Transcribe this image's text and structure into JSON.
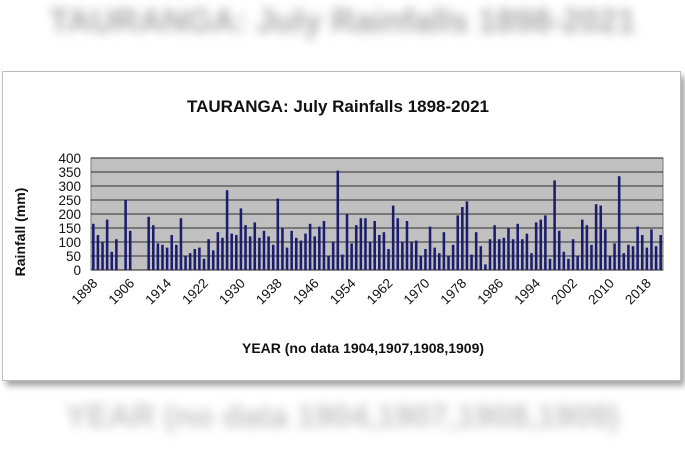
{
  "chart_data": {
    "type": "bar",
    "title": "TAURANGA: July Rainfalls  1898-2021",
    "xlabel": "YEAR (no data 1904,1907,1908,1909)",
    "ylabel": "Rainfall (mm)",
    "ylim": [
      0,
      400
    ],
    "yticks": [
      0,
      50,
      100,
      150,
      200,
      250,
      300,
      350,
      400
    ],
    "xtick_labels": [
      "1898",
      "1906",
      "1914",
      "1922",
      "1930",
      "1938",
      "1946",
      "1954",
      "1962",
      "1970",
      "1978",
      "1986",
      "1994",
      "2002",
      "2010",
      "2018"
    ],
    "grid": true,
    "legend": "none",
    "colors": {
      "bar": "#1c1c6e",
      "plot_bg": "#c0c0c0",
      "gridline": "#000000"
    },
    "start_year": 1898,
    "end_year": 2021,
    "missing_years": [
      1904,
      1907,
      1908,
      1909
    ],
    "values": [
      165,
      125,
      100,
      180,
      65,
      110,
      0,
      250,
      140,
      0,
      0,
      0,
      190,
      160,
      95,
      90,
      80,
      125,
      90,
      185,
      50,
      60,
      75,
      80,
      40,
      110,
      70,
      135,
      115,
      285,
      130,
      125,
      220,
      160,
      120,
      170,
      115,
      140,
      120,
      90,
      255,
      150,
      80,
      140,
      115,
      105,
      130,
      165,
      120,
      155,
      175,
      50,
      100,
      355,
      55,
      200,
      95,
      160,
      185,
      185,
      100,
      175,
      125,
      135,
      75,
      230,
      185,
      100,
      175,
      100,
      105,
      50,
      75,
      155,
      80,
      60,
      135,
      50,
      90,
      195,
      225,
      245,
      55,
      135,
      85,
      20,
      110,
      160,
      110,
      115,
      150,
      110,
      165,
      110,
      130,
      60,
      170,
      180,
      195,
      40,
      320,
      140,
      65,
      40,
      110,
      50,
      180,
      160,
      90,
      235,
      230,
      145,
      50,
      95,
      335,
      60,
      90,
      85,
      155,
      125,
      80,
      145,
      85,
      125
    ]
  }
}
